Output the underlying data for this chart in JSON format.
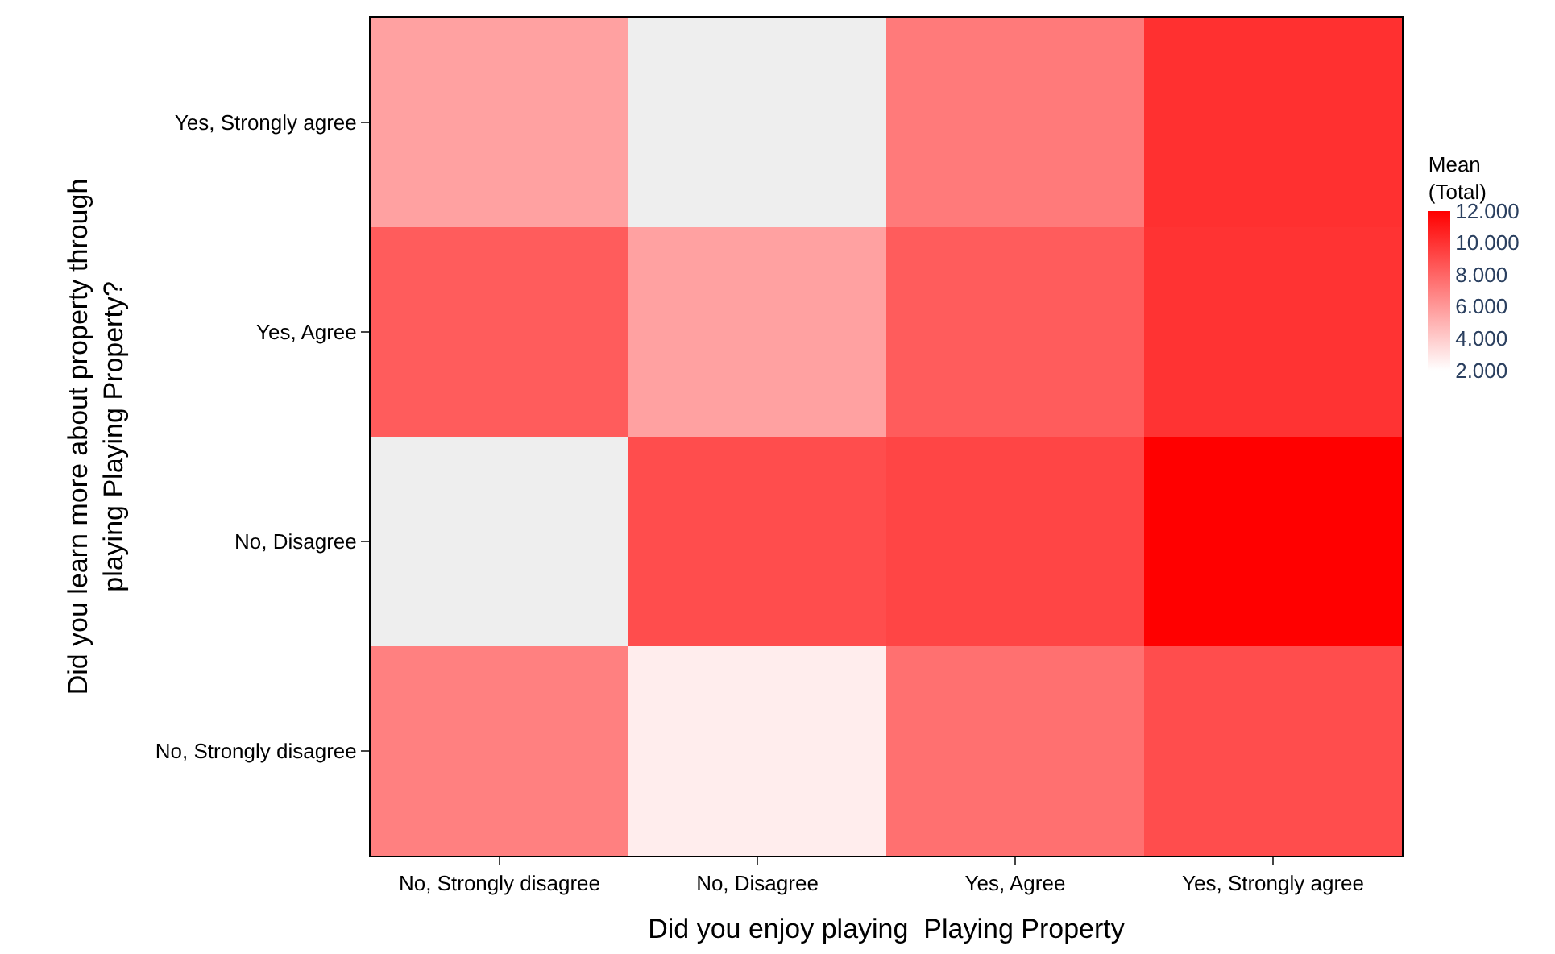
{
  "chart_data": {
    "type": "heatmap",
    "xlabel": "Did you enjoy playing  Playing Property",
    "ylabel": "Did you learn more about property through\nplaying Playing Property?",
    "clabel": "Mean\n(Total)",
    "categories": [
      "No, Strongly disagree",
      "No, Disagree",
      "Yes, Agree",
      "Yes, Strongly agree"
    ],
    "y_categories": [
      "Yes, Strongly agree",
      "Yes, Agree",
      "No, Disagree",
      "No, Strongly disagree"
    ],
    "cells": [
      [
        5.7,
        null,
        7.2,
        10.1
      ],
      [
        8.4,
        5.7,
        8.4,
        10.0
      ],
      [
        null,
        9.0,
        9.3,
        12.0
      ],
      [
        7.0,
        2.7,
        7.6,
        9.0
      ]
    ],
    "clim": [
      2,
      12
    ],
    "cticks": [
      {
        "value": 2,
        "label": "2.000"
      },
      {
        "value": 4,
        "label": "4.000"
      },
      {
        "value": 6,
        "label": "6.000"
      },
      {
        "value": 8,
        "label": "8.000"
      },
      {
        "value": 10,
        "label": "10.000"
      },
      {
        "value": 12,
        "label": "12.000"
      }
    ]
  }
}
